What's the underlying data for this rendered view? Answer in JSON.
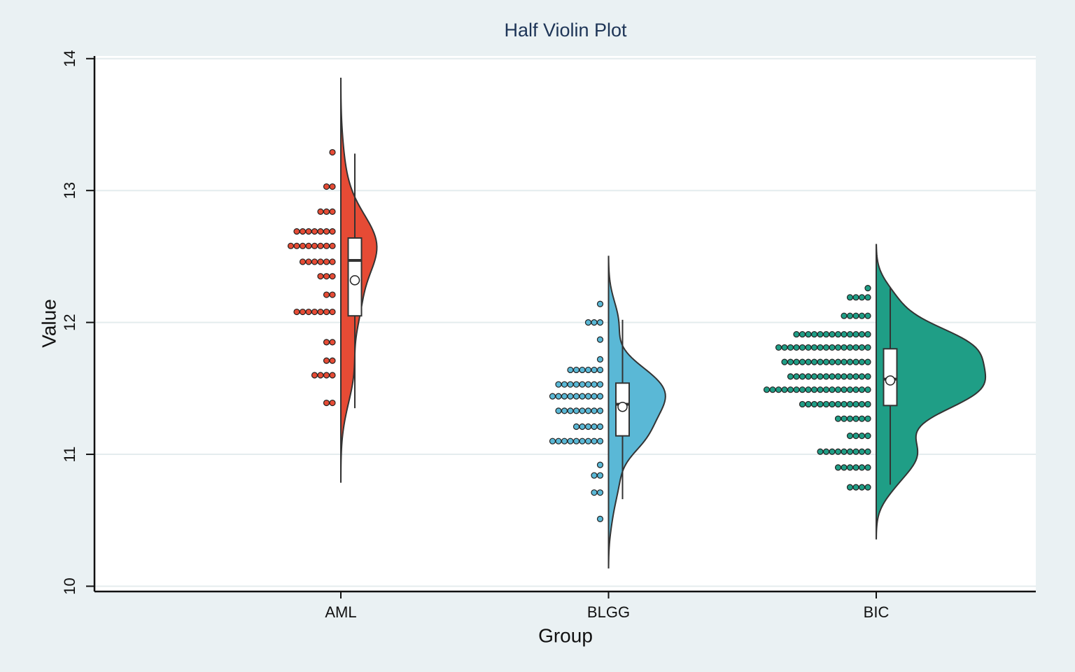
{
  "chart_data": {
    "type": "half_violin",
    "title": "Half Violin Plot",
    "x_label": "Group",
    "y_label": "Value",
    "ylim": [
      9.96,
      14.02
    ],
    "yticks": [
      10,
      11,
      12,
      13,
      14
    ],
    "grid": true,
    "categories": [
      "AML",
      "BLGG",
      "BIC"
    ],
    "series": [
      {
        "name": "AML",
        "color": "#e64b35",
        "dot_values": [
          13.29,
          13.03,
          12.84,
          12.69,
          12.58,
          12.46,
          12.35,
          12.21,
          12.08,
          11.85,
          11.71,
          11.6,
          11.39
        ],
        "dot_counts": [
          1,
          2,
          3,
          7,
          8,
          6,
          3,
          2,
          7,
          2,
          2,
          4,
          2
        ],
        "box": {
          "whisker_low": 11.35,
          "q1": 12.05,
          "median": 12.47,
          "q3": 12.64,
          "whisker_high": 13.28,
          "mean": 12.32
        },
        "violin_range": [
          10.79,
          13.85
        ]
      },
      {
        "name": "BLGG",
        "color": "#5ab8d6",
        "dot_values": [
          12.14,
          12.0,
          11.87,
          11.72,
          11.64,
          11.53,
          11.44,
          11.33,
          11.21,
          11.1,
          10.92,
          10.84,
          10.71,
          10.51
        ],
        "dot_counts": [
          1,
          3,
          1,
          1,
          6,
          8,
          9,
          8,
          5,
          9,
          1,
          2,
          2,
          1
        ],
        "box": {
          "whisker_low": 10.66,
          "q1": 11.14,
          "median": 11.38,
          "q3": 11.54,
          "whisker_high": 12.02,
          "mean": 11.36
        },
        "violin_range": [
          10.14,
          12.5
        ]
      },
      {
        "name": "BIC",
        "color": "#1f9e86",
        "dot_values": [
          12.26,
          12.19,
          12.05,
          11.91,
          11.81,
          11.7,
          11.59,
          11.49,
          11.38,
          11.27,
          11.14,
          11.02,
          10.9,
          10.75
        ],
        "dot_counts": [
          1,
          4,
          5,
          13,
          16,
          15,
          14,
          18,
          12,
          6,
          4,
          9,
          6,
          4
        ],
        "box": {
          "whisker_low": 10.77,
          "q1": 11.37,
          "median": 11.57,
          "q3": 11.8,
          "whisker_high": 12.26,
          "mean": 11.56
        },
        "violin_range": [
          10.36,
          12.59
        ]
      }
    ]
  }
}
